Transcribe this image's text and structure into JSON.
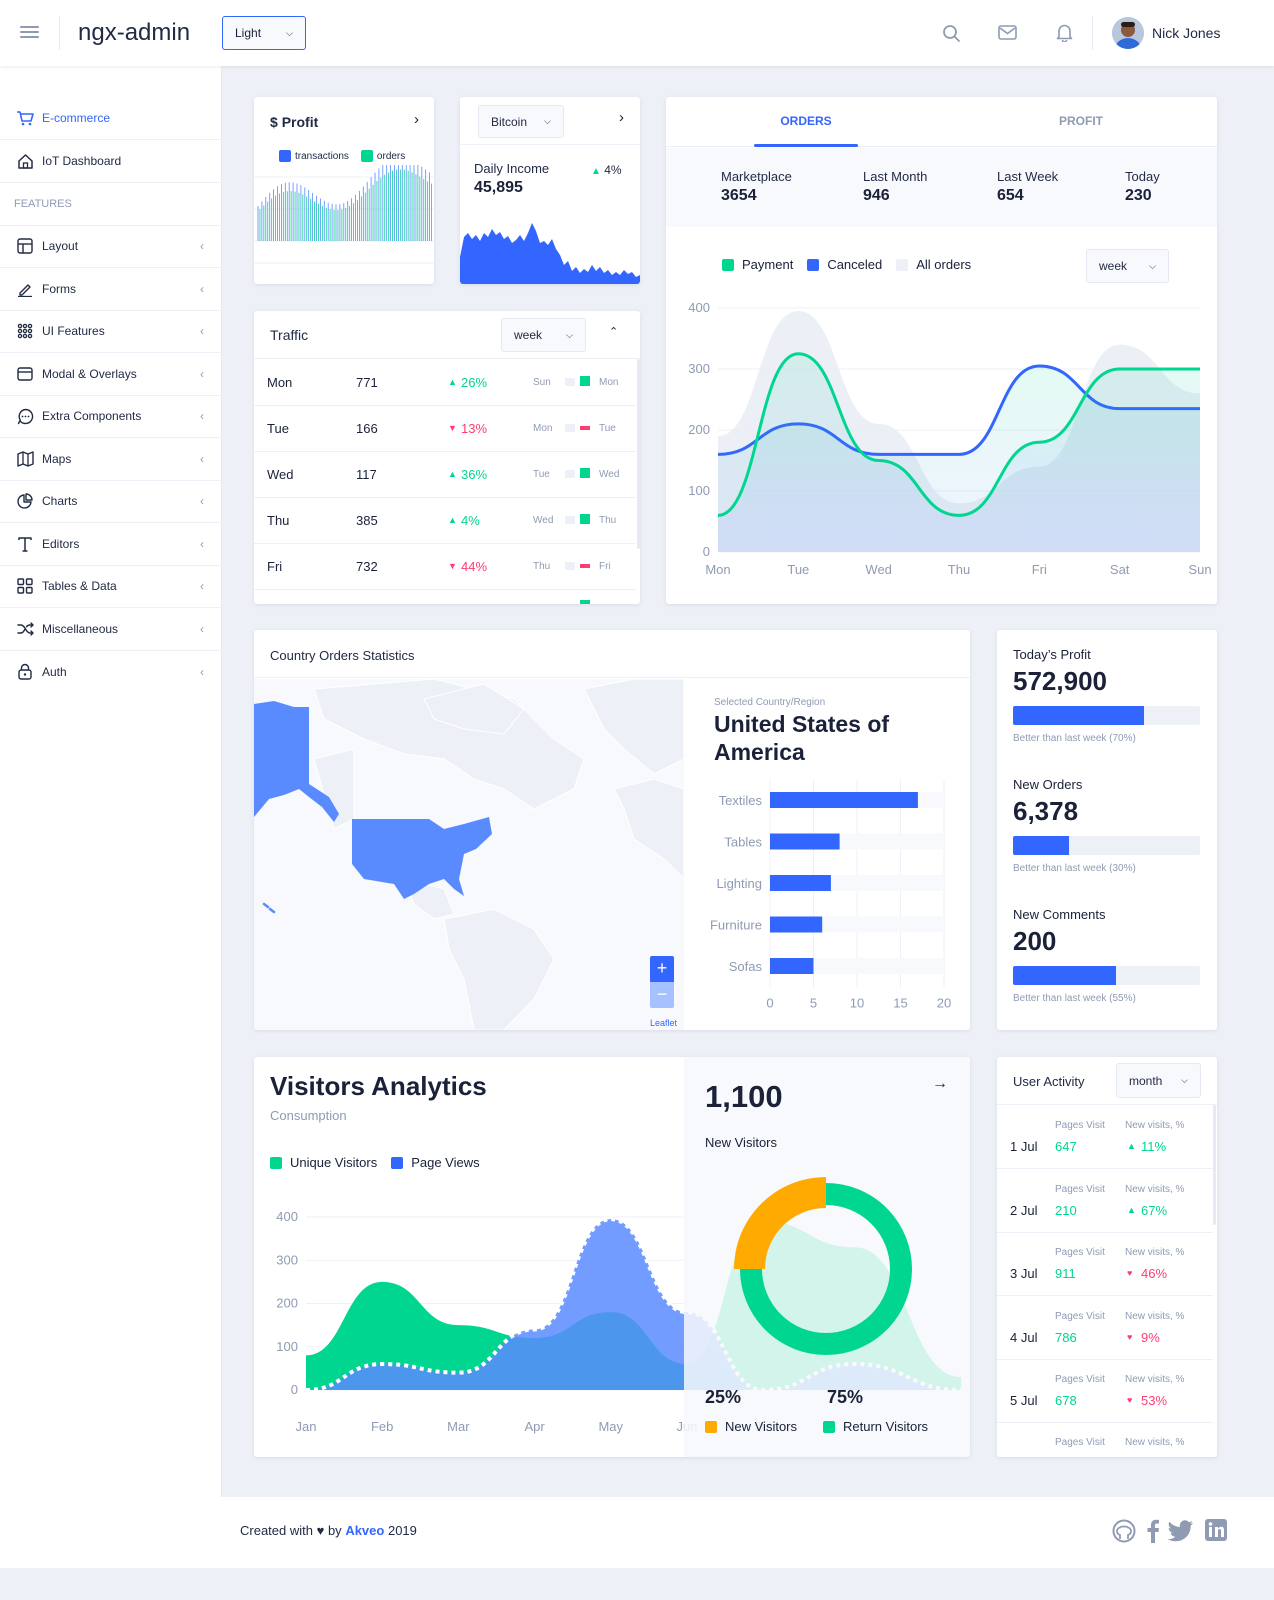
{
  "header": {
    "app_title": "ngx-admin",
    "theme_select": "Light",
    "user_name": "Nick Jones"
  },
  "sidebar": {
    "items": [
      {
        "label": "E-commerce",
        "icon": "shopping-cart-icon",
        "active": true
      },
      {
        "label": "IoT Dashboard",
        "icon": "home-icon"
      }
    ],
    "section_label": "FEATURES",
    "features": [
      {
        "label": "Layout",
        "icon": "layout-icon"
      },
      {
        "label": "Forms",
        "icon": "edit-icon"
      },
      {
        "label": "UI Features",
        "icon": "keypad-icon"
      },
      {
        "label": "Modal & Overlays",
        "icon": "browser-icon"
      },
      {
        "label": "Extra Components",
        "icon": "message-circle-icon"
      },
      {
        "label": "Maps",
        "icon": "map-icon"
      },
      {
        "label": "Charts",
        "icon": "pie-chart-icon"
      },
      {
        "label": "Editors",
        "icon": "text-icon"
      },
      {
        "label": "Tables & Data",
        "icon": "grid-icon"
      },
      {
        "label": "Miscellaneous",
        "icon": "shuffle-icon"
      },
      {
        "label": "Auth",
        "icon": "lock-icon"
      }
    ]
  },
  "profit_card": {
    "title": "Profit",
    "currency_symbol": "$",
    "legend": [
      "transactions",
      "orders"
    ]
  },
  "bitcoin_card": {
    "select": "Bitcoin",
    "label": "Daily Income",
    "value": "45,895",
    "delta": "4%"
  },
  "traffic": {
    "title": "Traffic",
    "period": "week",
    "rows": [
      {
        "day": "Mon",
        "value": "771",
        "delta": "26%",
        "dir": "up",
        "prev": "Sun",
        "cur": "Mon"
      },
      {
        "day": "Tue",
        "value": "166",
        "delta": "13%",
        "dir": "down",
        "prev": "Mon",
        "cur": "Tue"
      },
      {
        "day": "Wed",
        "value": "117",
        "delta": "36%",
        "dir": "up",
        "prev": "Tue",
        "cur": "Wed"
      },
      {
        "day": "Thu",
        "value": "385",
        "delta": "4%",
        "dir": "up",
        "prev": "Wed",
        "cur": "Thu"
      },
      {
        "day": "Fri",
        "value": "732",
        "delta": "44%",
        "dir": "down",
        "prev": "Thu",
        "cur": "Fri"
      }
    ]
  },
  "orders_card": {
    "tabs": [
      "ORDERS",
      "PROFIT"
    ],
    "stats": [
      {
        "label": "Marketplace",
        "value": "3654"
      },
      {
        "label": "Last Month",
        "value": "946"
      },
      {
        "label": "Last Week",
        "value": "654"
      },
      {
        "label": "Today",
        "value": "230"
      }
    ],
    "legend": [
      "Payment",
      "Canceled",
      "All orders"
    ],
    "period": "week"
  },
  "country": {
    "title": "Country Orders Statistics",
    "selected_label": "Selected Country/Region",
    "selected_country": "United States of America",
    "zoom_in": "+",
    "zoom_out": "−",
    "attribution": "Leaflet"
  },
  "summary": [
    {
      "title": "Today’s Profit",
      "value": "572,900",
      "percent": 70,
      "note": "Better than last week (70%)"
    },
    {
      "title": "New Orders",
      "value": "6,378",
      "percent": 30,
      "note": "Better than last week (30%)"
    },
    {
      "title": "New Comments",
      "value": "200",
      "percent": 55,
      "note": "Better than last week (55%)"
    }
  ],
  "visitors": {
    "title": "Visitors Analytics",
    "subtitle": "Consumption",
    "legend": [
      "Unique Visitors",
      "Page Views"
    ],
    "new_visitors_value": "1,100",
    "new_visitors_label": "New Visitors",
    "pct_new": "25%",
    "pct_return": "75%",
    "donut_legend": [
      "New Visitors",
      "Return Visitors"
    ]
  },
  "user_activity": {
    "title": "User Activity",
    "period": "month",
    "col_pages": "Pages Visit",
    "col_new": "New visits, %",
    "rows": [
      {
        "date": "1 Jul",
        "pages": "647",
        "delta": "11%",
        "dir": "up"
      },
      {
        "date": "2 Jul",
        "pages": "210",
        "delta": "67%",
        "dir": "up"
      },
      {
        "date": "3 Jul",
        "pages": "911",
        "delta": "46%",
        "dir": "down"
      },
      {
        "date": "4 Jul",
        "pages": "786",
        "delta": "9%",
        "dir": "down"
      },
      {
        "date": "5 Jul",
        "pages": "678",
        "delta": "53%",
        "dir": "down"
      }
    ]
  },
  "footer": {
    "created_with": "Created with",
    "by": "by",
    "brand": "Akveo",
    "year": "2019"
  },
  "chart_data": [
    {
      "type": "line",
      "title": "",
      "categories": [
        "Mon",
        "Tue",
        "Wed",
        "Thu",
        "Fri",
        "Sat",
        "Sun"
      ],
      "ylim": [
        0,
        400
      ],
      "yticks": [
        0,
        100,
        200,
        300,
        400
      ],
      "series": [
        {
          "name": "Payment",
          "values": [
            60,
            325,
            150,
            60,
            180,
            300,
            300
          ],
          "color": "#00d68f"
        },
        {
          "name": "Canceled",
          "values": [
            160,
            210,
            160,
            160,
            305,
            235,
            235
          ],
          "color": "#3366ff"
        },
        {
          "name": "All orders",
          "values": [
            190,
            395,
            210,
            80,
            140,
            340,
            260
          ],
          "color": "#e4e9f2"
        }
      ]
    },
    {
      "type": "bar",
      "categories": [
        "Textiles",
        "Tables",
        "Lighting",
        "Furniture",
        "Sofas"
      ],
      "values": [
        17,
        8,
        7,
        6,
        5
      ],
      "xlim": [
        0,
        20
      ],
      "xticks": [
        0,
        5,
        10,
        15,
        20
      ]
    },
    {
      "type": "area",
      "title": "",
      "categories": [
        "Jan",
        "Feb",
        "Mar",
        "Apr",
        "May",
        "Jun",
        "Jul"
      ],
      "ylim": [
        0,
        400
      ],
      "yticks": [
        0,
        100,
        200,
        300,
        400
      ],
      "series": [
        {
          "name": "Unique Visitors",
          "values": [
            80,
            250,
            150,
            120,
            180,
            60,
            390
          ],
          "color": "#00d68f"
        },
        {
          "name": "Page Views",
          "values": [
            0,
            60,
            40,
            140,
            395,
            180,
            0
          ],
          "color": "#598bff"
        }
      ]
    },
    {
      "type": "pie",
      "categories": [
        "New Visitors",
        "Return Visitors"
      ],
      "values": [
        25,
        75
      ]
    }
  ]
}
